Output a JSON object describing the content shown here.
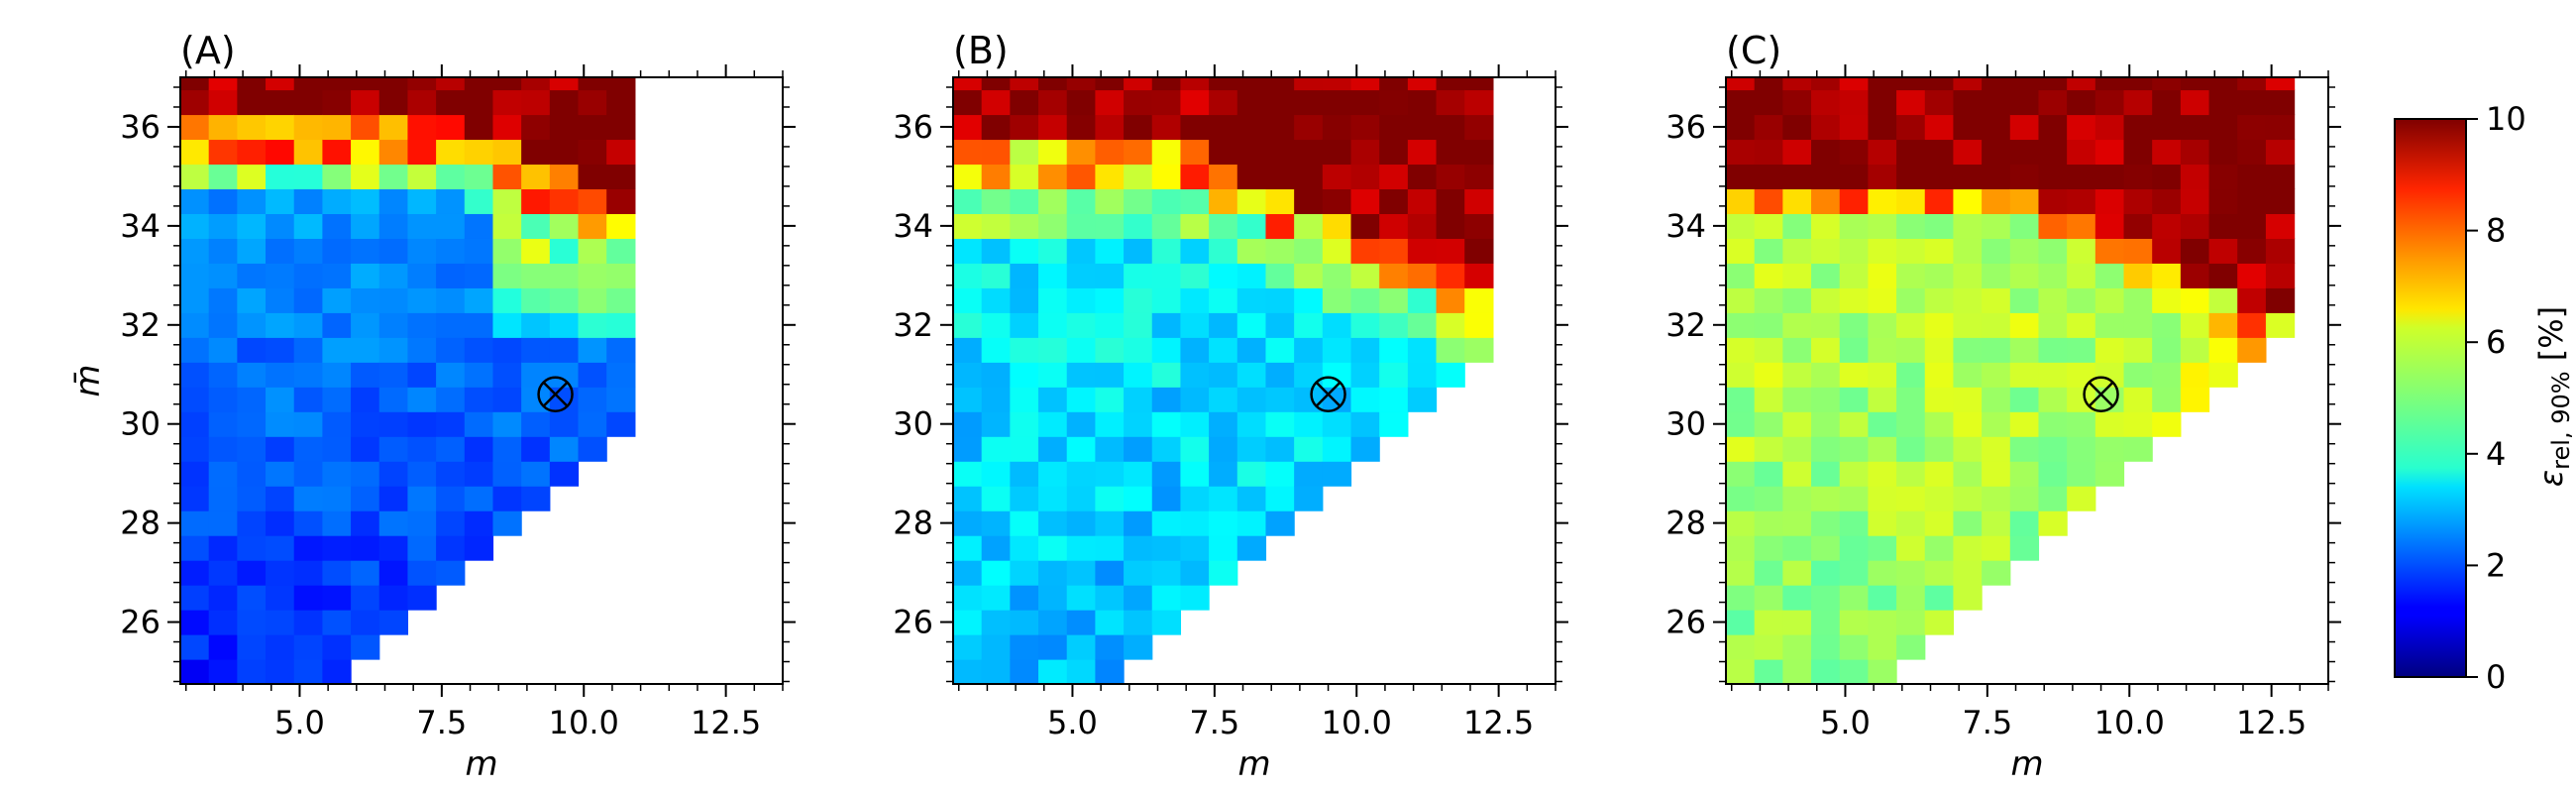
{
  "chart_data": [
    {
      "type": "heatmap",
      "panel_label": "(A)",
      "xlabel": "m",
      "ylabel": "m̄",
      "xlim": [
        2.9,
        13.5
      ],
      "ylim": [
        24.75,
        37.0
      ],
      "xticks": [
        5.0,
        7.5,
        10.0,
        12.5
      ],
      "xtick_labels": [
        "5.0",
        "7.5",
        "10.0",
        "12.5"
      ],
      "yticks": [
        26,
        28,
        30,
        32,
        34,
        36
      ],
      "ytick_labels": [
        "26",
        "28",
        "30",
        "32",
        "34",
        "36"
      ],
      "marker": {
        "symbol": "circled-x",
        "x": 9.5,
        "y": 30.6
      },
      "note": "relative error field, dark red at top (>=10%), blue (~1.5-3%) in lower-left; white region is empty (no data)"
    },
    {
      "type": "heatmap",
      "panel_label": "(B)",
      "xlabel": "m",
      "ylabel": "",
      "xlim": [
        2.9,
        13.5
      ],
      "ylim": [
        24.75,
        37.0
      ],
      "xticks": [
        5.0,
        7.5,
        10.0,
        12.5
      ],
      "xtick_labels": [
        "5.0",
        "7.5",
        "10.0",
        "12.5"
      ],
      "yticks": [
        26,
        28,
        30,
        32,
        34,
        36
      ],
      "ytick_labels": [
        "26",
        "28",
        "30",
        "32",
        "34",
        "36"
      ],
      "marker": {
        "symbol": "circled-x",
        "x": 9.5,
        "y": 30.6
      },
      "note": "relative error field mostly cyan/green (~3-5%), dark red (>=10%) at top"
    },
    {
      "type": "heatmap",
      "panel_label": "(C)",
      "xlabel": "m",
      "ylabel": "",
      "xlim": [
        2.9,
        13.5
      ],
      "ylim": [
        24.75,
        37.0
      ],
      "xticks": [
        5.0,
        7.5,
        10.0,
        12.5
      ],
      "xtick_labels": [
        "5.0",
        "7.5",
        "10.0",
        "12.5"
      ],
      "yticks": [
        26,
        28,
        30,
        32,
        34,
        36
      ],
      "ytick_labels": [
        "26",
        "28",
        "30",
        "32",
        "34",
        "36"
      ],
      "marker": {
        "symbol": "circled-x",
        "x": 9.5,
        "y": 30.6
      },
      "note": "relative error field mostly green/yellow (~5-6%), dark red (>=10%) top region"
    }
  ],
  "colorbar": {
    "colormap": "jet",
    "label": "ε_rel,90% [%]",
    "label_main": "ε",
    "label_sub": "rel, 90%",
    "label_unit": " [%]",
    "min": 0,
    "max": 10,
    "ticks": [
      0,
      2,
      4,
      6,
      8,
      10
    ],
    "tick_labels": [
      "0",
      "2",
      "4",
      "6",
      "8",
      "10"
    ]
  }
}
